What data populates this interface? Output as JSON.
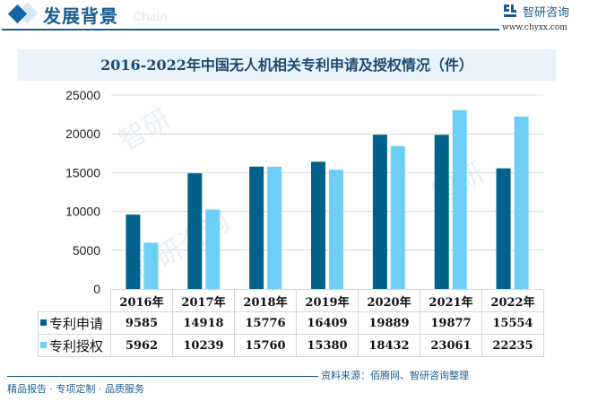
{
  "header": {
    "section_title": "发展背景",
    "section_subtitle": "Chain",
    "logo_text": "智研咨询",
    "logo_url": "www.chyxx.com"
  },
  "colors": {
    "series_apply": "#00628a",
    "series_grant": "#6dcff6",
    "brand": "#1a5d92",
    "title_bg": "#e8f3fb",
    "grid": "#d9d9d9"
  },
  "chart_data": {
    "type": "bar",
    "title": "2016-2022年中国无人机相关专利申请及授权情况（件）",
    "categories": [
      "2016年",
      "2017年",
      "2018年",
      "2019年",
      "2020年",
      "2021年",
      "2022年"
    ],
    "series": [
      {
        "name": "专利申请",
        "values": [
          9585,
          14918,
          15776,
          16409,
          19889,
          19877,
          15554
        ]
      },
      {
        "name": "专利授权",
        "values": [
          5962,
          10239,
          15760,
          15380,
          18432,
          23061,
          22235
        ]
      }
    ],
    "yticks": [
      "0",
      "5000",
      "10000",
      "15000",
      "20000",
      "25000"
    ],
    "ylim": [
      0,
      25000
    ],
    "grid": true,
    "legend": "data-table-left",
    "xlabel": "",
    "ylabel": ""
  },
  "footer": {
    "left": "精品报告 · 专项定制 · 品质服务",
    "source": "资料来源：佰腾网、智研咨询整理"
  }
}
